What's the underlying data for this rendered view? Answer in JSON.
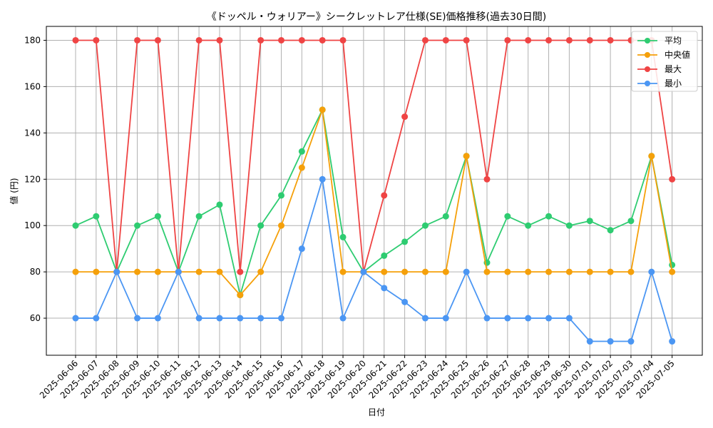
{
  "chart_data": {
    "type": "line",
    "title": "《ドッペル・ウォリアー》シークレットレア仕様(SE)価格推移(過去30日間)",
    "xlabel": "日付",
    "ylabel": "値 (円)",
    "ylim": [
      44,
      186
    ],
    "yticks": [
      60,
      80,
      100,
      120,
      140,
      160,
      180
    ],
    "grid": true,
    "legend_position": "top-right",
    "categories": [
      "2025-06-06",
      "2025-06-07",
      "2025-06-08",
      "2025-06-09",
      "2025-06-10",
      "2025-06-11",
      "2025-06-12",
      "2025-06-13",
      "2025-06-14",
      "2025-06-15",
      "2025-06-16",
      "2025-06-17",
      "2025-06-18",
      "2025-06-19",
      "2025-06-20",
      "2025-06-21",
      "2025-06-22",
      "2025-06-23",
      "2025-06-24",
      "2025-06-25",
      "2025-06-26",
      "2025-06-27",
      "2025-06-28",
      "2025-06-29",
      "2025-06-30",
      "2025-07-01",
      "2025-07-02",
      "2025-07-03",
      "2025-07-04",
      "2025-07-05"
    ],
    "series": [
      {
        "name": "平均",
        "color": "#2ecc71",
        "values": [
          100,
          104,
          80,
          100,
          104,
          80,
          104,
          109,
          70,
          100,
          113,
          132,
          150,
          95,
          80,
          87,
          93,
          100,
          104,
          130,
          84,
          104,
          100,
          104,
          100,
          102,
          98,
          102,
          130,
          83
        ]
      },
      {
        "name": "中央値",
        "color": "#f5a00a",
        "values": [
          80,
          80,
          80,
          80,
          80,
          80,
          80,
          80,
          70,
          80,
          100,
          125,
          150,
          80,
          80,
          80,
          80,
          80,
          80,
          130,
          80,
          80,
          80,
          80,
          80,
          80,
          80,
          80,
          130,
          80
        ]
      },
      {
        "name": "最大",
        "color": "#ef4444",
        "values": [
          180,
          180,
          80,
          180,
          180,
          80,
          180,
          180,
          80,
          180,
          180,
          180,
          180,
          180,
          80,
          113,
          147,
          180,
          180,
          180,
          120,
          180,
          180,
          180,
          180,
          180,
          180,
          180,
          180,
          120
        ]
      },
      {
        "name": "最小",
        "color": "#4b96f3",
        "values": [
          60,
          60,
          80,
          60,
          60,
          80,
          60,
          60,
          60,
          60,
          60,
          90,
          120,
          60,
          80,
          73,
          67,
          60,
          60,
          80,
          60,
          60,
          60,
          60,
          60,
          50,
          50,
          50,
          80,
          50
        ]
      }
    ]
  }
}
